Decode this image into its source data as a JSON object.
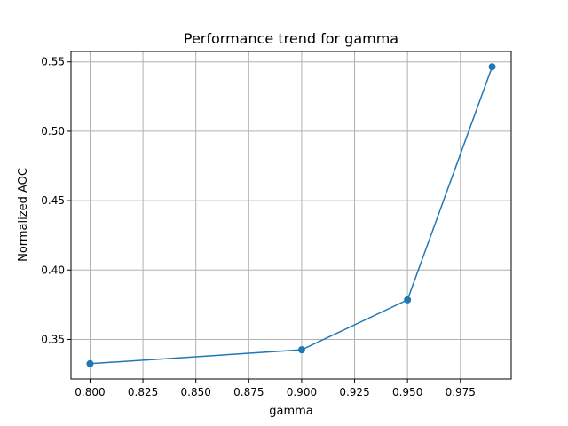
{
  "chart_data": {
    "type": "line",
    "title": "Performance trend for gamma",
    "xlabel": "gamma",
    "ylabel": "Normalized AOC",
    "x": [
      0.8,
      0.9,
      0.95,
      0.99
    ],
    "series": [
      {
        "values": [
          0.3325,
          0.3425,
          0.3785,
          0.5465
        ]
      }
    ],
    "xlim": [
      0.791,
      0.999
    ],
    "ylim": [
      0.3215,
      0.5575
    ],
    "xticks": [
      0.8,
      0.825,
      0.85,
      0.875,
      0.9,
      0.925,
      0.95,
      0.975
    ],
    "xtick_labels": [
      "0.800",
      "0.825",
      "0.850",
      "0.875",
      "0.900",
      "0.925",
      "0.950",
      "0.975"
    ],
    "yticks": [
      0.35,
      0.4,
      0.45,
      0.5,
      0.55
    ],
    "ytick_labels": [
      "0.35",
      "0.40",
      "0.45",
      "0.50",
      "0.55"
    ],
    "grid": true,
    "line_color": "#1f77b4",
    "marker": "circle"
  }
}
